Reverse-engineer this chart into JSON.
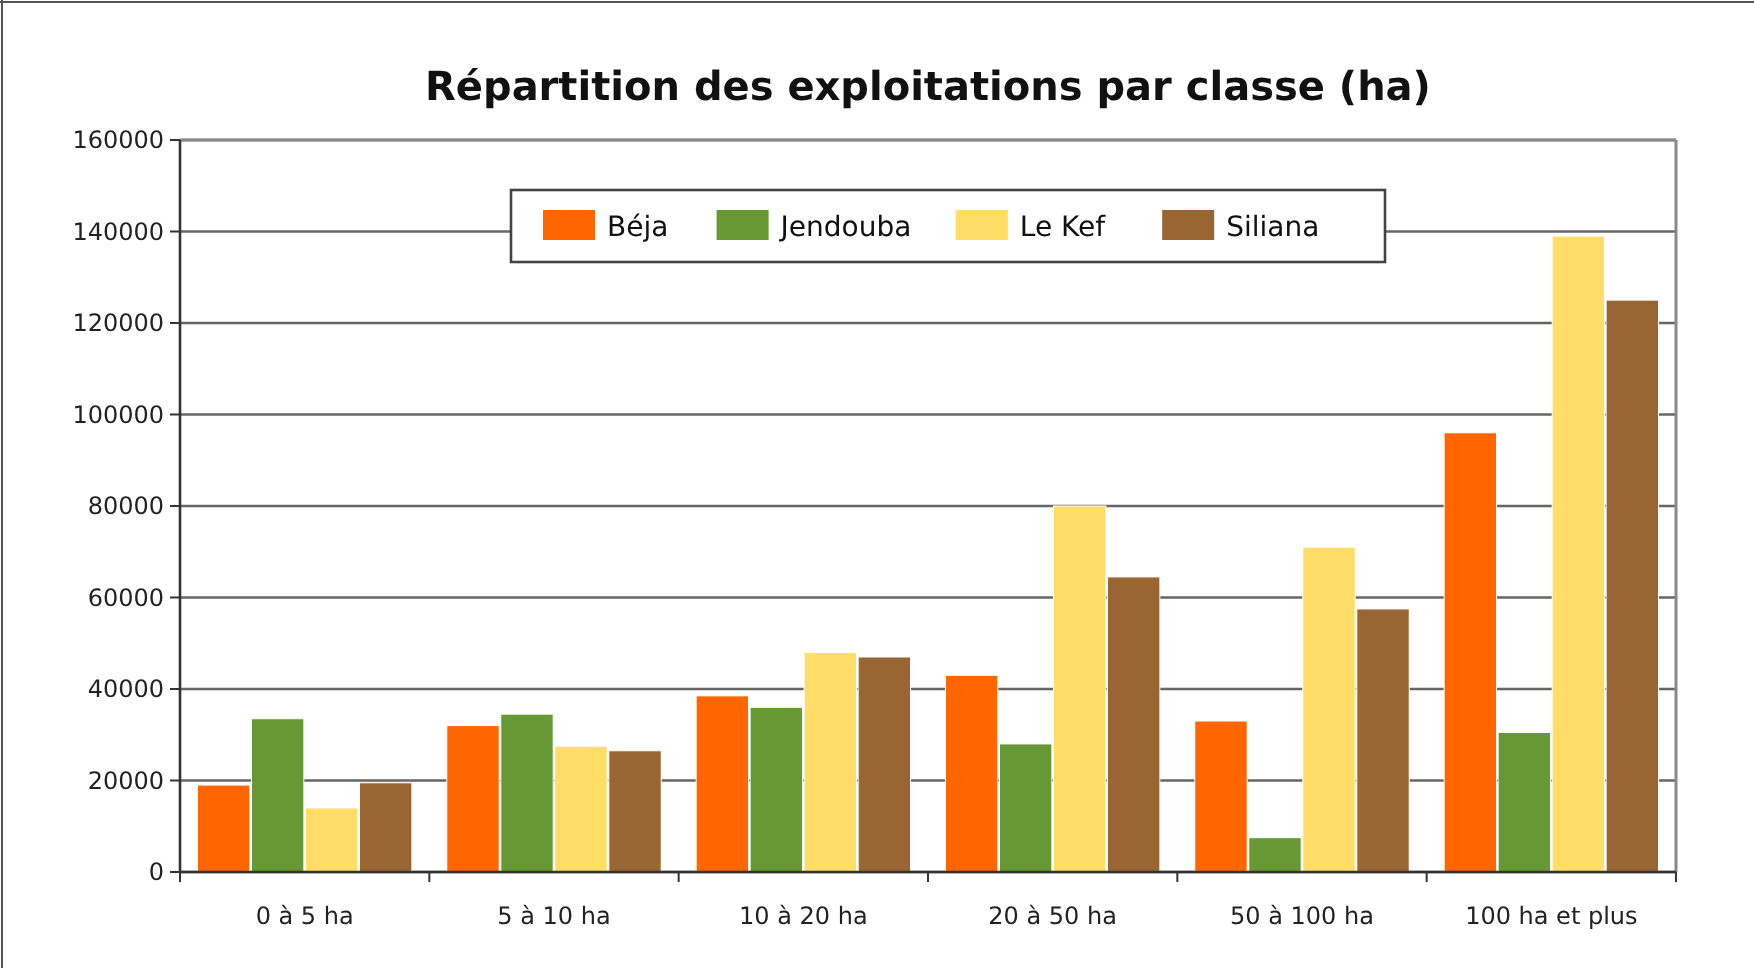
{
  "chart_data": {
    "type": "bar",
    "title": "Répartition des exploitations par classe (ha)",
    "categories": [
      "0 à 5 ha",
      "5 à 10 ha",
      "10 à 20 ha",
      "20 à 50 ha",
      "50 à 100 ha",
      "100 ha et plus"
    ],
    "series": [
      {
        "name": "Béja",
        "color": "#ff6600",
        "values": [
          19000,
          32000,
          38500,
          43000,
          33000,
          96000
        ]
      },
      {
        "name": "Jendouba",
        "color": "#669933",
        "values": [
          33500,
          34500,
          36000,
          28000,
          7500,
          30500
        ]
      },
      {
        "name": "Le Kef",
        "color": "#ffdd66",
        "values": [
          14000,
          27500,
          48000,
          80000,
          71000,
          139000
        ]
      },
      {
        "name": "Siliana",
        "color": "#996633",
        "values": [
          19500,
          26500,
          47000,
          64500,
          57500,
          125000
        ]
      }
    ],
    "ylim": [
      0,
      160000
    ],
    "yticks": [
      0,
      20000,
      40000,
      60000,
      80000,
      100000,
      120000,
      140000,
      160000
    ],
    "grid": "y",
    "legend": "top"
  }
}
